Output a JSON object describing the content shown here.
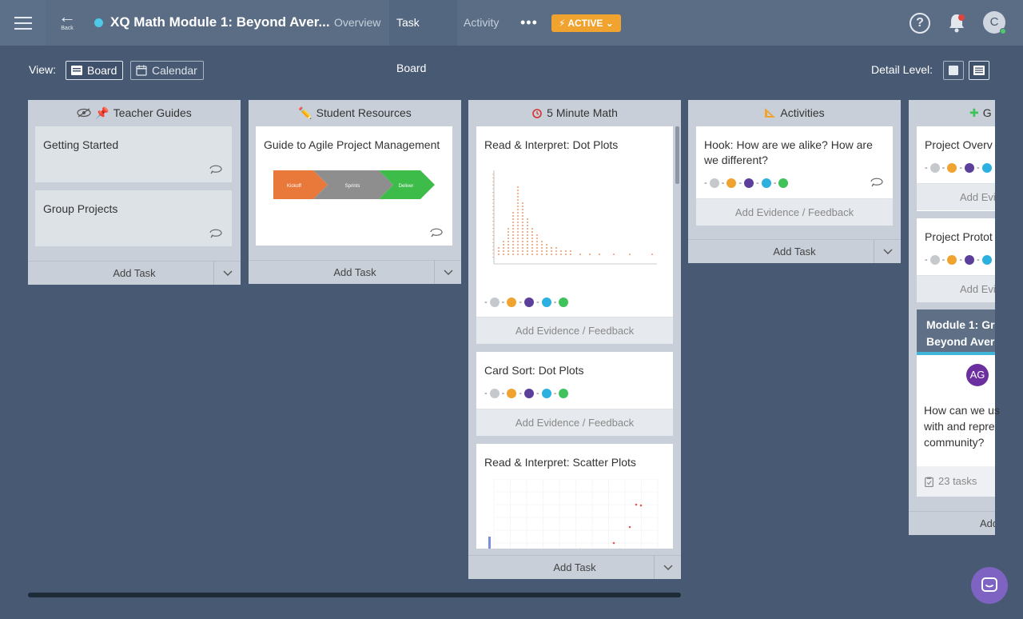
{
  "topbar": {
    "back_label": "Back",
    "project_title": "XQ Math Module 1: Beyond Aver...",
    "tabs": [
      {
        "label": "Overview"
      },
      {
        "label": "Task Board"
      },
      {
        "label": "Activity"
      }
    ],
    "more_label": "•••",
    "status_badge": "ACTIVE",
    "help_label": "?",
    "user_initial": "C"
  },
  "toolbar": {
    "view_label": "View:",
    "board_label": "Board",
    "calendar_label": "Calendar",
    "detail_label": "Detail Level:"
  },
  "columns": [
    {
      "title": "Teacher Guides",
      "cards": [
        {
          "title": "Getting Started"
        },
        {
          "title": "Group Projects"
        }
      ],
      "add_task": "Add Task"
    },
    {
      "title": "Student Resources",
      "cards": [
        {
          "title": "Guide to Agile Project Management",
          "diagram": [
            "Kickoff",
            "Sprints",
            "Deliver"
          ]
        }
      ],
      "add_task": "Add Task"
    },
    {
      "title": "5 Minute Math",
      "cards": [
        {
          "title": "Read & Interpret: Dot Plots",
          "evidence": "Add Evidence / Feedback"
        },
        {
          "title": "Card Sort: Dot Plots",
          "evidence": "Add Evidence / Feedback"
        },
        {
          "title": "Read & Interpret: Scatter Plots"
        }
      ],
      "add_task": "Add Task"
    },
    {
      "title": "Activities",
      "cards": [
        {
          "title_line1": "Hook: How are we alike? How are",
          "title_line2": "we different?",
          "evidence": "Add Evidence / Feedback"
        }
      ],
      "add_task": "Add Task"
    },
    {
      "title": "G",
      "cards": [
        {
          "title": "Project Overv",
          "evidence": "Add Evid"
        },
        {
          "title": "Project Protot",
          "evidence": "Add Evid"
        }
      ],
      "module": {
        "title_line1": "Module 1: Gr",
        "title_line2": "Beyond Aver",
        "avatar": "AG",
        "text_line1": "How can we us",
        "text_line2": "with and repre",
        "text_line3": "community?",
        "tasks": "23 tasks"
      },
      "add_task": "Add"
    }
  ],
  "status_sep": "-",
  "colors": {
    "accent": "#f0a32f",
    "board_bg": "#485a73",
    "column_bg": "#c8cfd8"
  }
}
